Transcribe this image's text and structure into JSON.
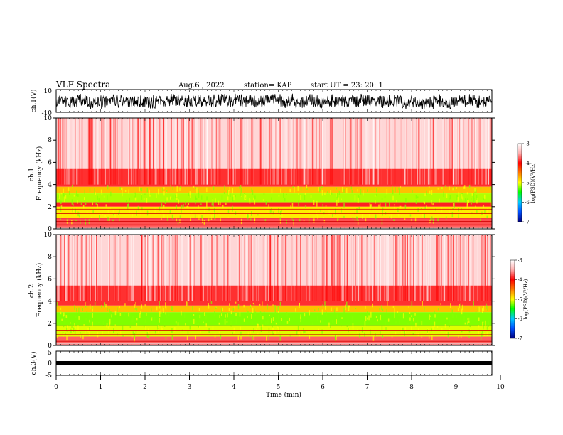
{
  "header": {
    "title": "VLF Spectra",
    "date": "Aug.6 , 2022",
    "station": "station= KAP",
    "start": "start UT = 23: 20: 1"
  },
  "colors": {
    "spectrogram_high": "#ff0000",
    "spectrogram_mid": "#ffff00",
    "spectrogram_low": "#00ff00",
    "background": "#ffffff",
    "waveform": "#000000"
  },
  "chart_data": [
    {
      "type": "line",
      "name": "ch1-waveform",
      "ylabel": "ch.1(V)",
      "ylim": [
        -10,
        10
      ],
      "yticks": [
        "10",
        "-10"
      ],
      "xlim": [
        0,
        10
      ]
    },
    {
      "type": "heatmap",
      "name": "ch1-spectrogram",
      "ylabel": "ch.1 Frequency (kHz)",
      "ylim": [
        0,
        10
      ],
      "yticks": [
        "0",
        "2",
        "4",
        "6",
        "8",
        "10"
      ],
      "xlim": [
        0,
        10
      ],
      "colorbar": {
        "label": "log(PSD)(V²/Hz)",
        "ticks": [
          "-3",
          "-4",
          "-5",
          "-6",
          "-7"
        ],
        "range": [
          -7,
          -3
        ]
      }
    },
    {
      "type": "heatmap",
      "name": "ch2-spectrogram",
      "ylabel": "ch.2 Frequency (kHz)",
      "ylim": [
        0,
        10
      ],
      "yticks": [
        "0",
        "2",
        "4",
        "6",
        "8",
        "10"
      ],
      "xlim": [
        0,
        10
      ],
      "colorbar": {
        "label": "log(PSD)(V²/Hz)",
        "ticks": [
          "-3",
          "-4",
          "-5",
          "-6",
          "-7"
        ],
        "range": [
          -7,
          -3
        ]
      }
    },
    {
      "type": "line",
      "name": "ch3-waveform",
      "ylabel": "ch.3(V)",
      "ylim": [
        -5,
        5
      ],
      "yticks": [
        "5",
        "0",
        "-5"
      ],
      "xlim": [
        0,
        10
      ],
      "xlabel": "Time (min)",
      "xticks": [
        "0",
        "1",
        "2",
        "3",
        "4",
        "5",
        "6",
        "7",
        "8",
        "9",
        "10"
      ]
    }
  ]
}
